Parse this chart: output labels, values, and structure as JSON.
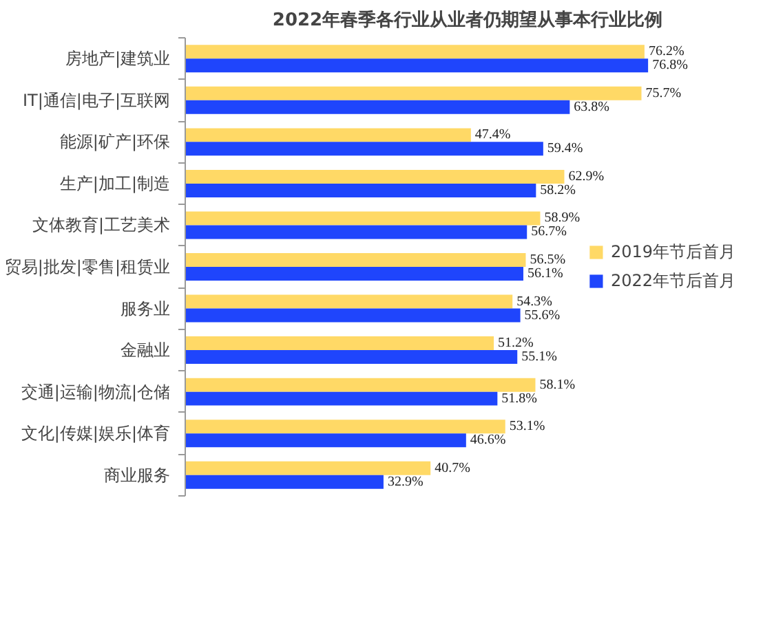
{
  "chart_data": {
    "type": "bar",
    "orientation": "horizontal",
    "title": "2022年春季各行业从业者仍期望从事本行业比例",
    "categories": [
      "房地产|建筑业",
      "IT|通信|电子|互联网",
      "能源|矿产|环保",
      "生产|加工|制造",
      "文体教育|工艺美术",
      "贸易|批发|零售|租赁业",
      "服务业",
      "金融业",
      "交通|运输|物流|仓储",
      "文化|传媒|娱乐|体育",
      "商业服务"
    ],
    "series": [
      {
        "name": "2019年节后首月",
        "color": "#ffd966",
        "values": [
          76.2,
          75.7,
          47.4,
          62.9,
          58.9,
          56.5,
          54.3,
          51.2,
          58.1,
          53.1,
          40.7
        ],
        "value_labels": [
          "76.2%",
          "75.7%",
          "47.4%",
          "62.9%",
          "58.9%",
          "56.5%",
          "54.3%",
          "51.2%",
          "58.1%",
          "53.1%",
          "40.7%"
        ]
      },
      {
        "name": "2022年节后首月",
        "color": "#1f45fc",
        "values": [
          76.8,
          63.8,
          59.4,
          58.2,
          56.7,
          56.1,
          55.6,
          55.1,
          51.8,
          46.6,
          32.9
        ],
        "value_labels": [
          "76.8%",
          "63.8%",
          "59.4%",
          "58.2%",
          "56.7%",
          "56.1%",
          "55.6%",
          "55.1%",
          "51.8%",
          "46.6%",
          "32.9%"
        ]
      }
    ],
    "legend": "right",
    "grid": false
  }
}
